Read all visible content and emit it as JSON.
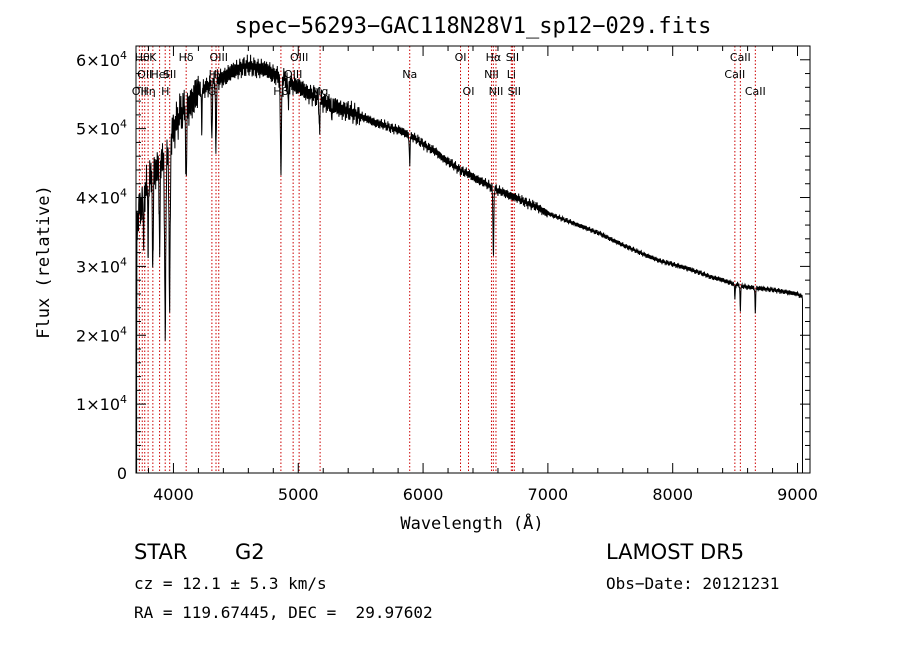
{
  "chart_data": {
    "type": "line",
    "title": "spec−56293−GAC118N28V1_sp12−029.fits",
    "xlabel": "Wavelength (Å)",
    "ylabel": "Flux (relative)",
    "xlim": [
      3700,
      9100
    ],
    "ylim": [
      0,
      62000
    ],
    "x_ticks": [
      {
        "value": 4000,
        "label": "4000"
      },
      {
        "value": 5000,
        "label": "5000"
      },
      {
        "value": 6000,
        "label": "6000"
      },
      {
        "value": 7000,
        "label": "7000"
      },
      {
        "value": 8000,
        "label": "8000"
      },
      {
        "value": 9000,
        "label": "9000"
      }
    ],
    "y_ticks": [
      {
        "value": 0,
        "label": "0"
      },
      {
        "value": 10000,
        "label": "1×10",
        "exp": "4"
      },
      {
        "value": 20000,
        "label": "2×10",
        "exp": "4"
      },
      {
        "value": 30000,
        "label": "3×10",
        "exp": "4"
      },
      {
        "value": 40000,
        "label": "4×10",
        "exp": "4"
      },
      {
        "value": 50000,
        "label": "5×10",
        "exp": "4"
      },
      {
        "value": 60000,
        "label": "6×10",
        "exp": "4"
      }
    ],
    "continuum": [
      [
        3700,
        36000
      ],
      [
        3750,
        40000
      ],
      [
        3800,
        42000
      ],
      [
        3850,
        44000
      ],
      [
        3900,
        45000
      ],
      [
        3950,
        47000
      ],
      [
        4000,
        50000
      ],
      [
        4050,
        52000
      ],
      [
        4100,
        53000
      ],
      [
        4150,
        54000
      ],
      [
        4200,
        55500
      ],
      [
        4250,
        56000
      ],
      [
        4300,
        56500
      ],
      [
        4350,
        57000
      ],
      [
        4400,
        57500
      ],
      [
        4450,
        58000
      ],
      [
        4500,
        58500
      ],
      [
        4550,
        59000
      ],
      [
        4600,
        59000
      ],
      [
        4700,
        58800
      ],
      [
        4800,
        58000
      ],
      [
        4900,
        57000
      ],
      [
        5000,
        56000
      ],
      [
        5100,
        55000
      ],
      [
        5200,
        54000
      ],
      [
        5300,
        53200
      ],
      [
        5400,
        52500
      ],
      [
        5500,
        51800
      ],
      [
        5600,
        51000
      ],
      [
        5700,
        50400
      ],
      [
        5800,
        49800
      ],
      [
        5900,
        49000
      ],
      [
        6000,
        47800
      ],
      [
        6100,
        46600
      ],
      [
        6200,
        45200
      ],
      [
        6300,
        44000
      ],
      [
        6400,
        43000
      ],
      [
        6500,
        42000
      ],
      [
        6600,
        41000
      ],
      [
        6700,
        40300
      ],
      [
        6800,
        39500
      ],
      [
        6900,
        38700
      ],
      [
        7000,
        37700
      ],
      [
        7100,
        37000
      ],
      [
        7200,
        36300
      ],
      [
        7300,
        35600
      ],
      [
        7400,
        34900
      ],
      [
        7500,
        34000
      ],
      [
        7600,
        33100
      ],
      [
        7700,
        32300
      ],
      [
        7800,
        31500
      ],
      [
        7900,
        30800
      ],
      [
        8000,
        30300
      ],
      [
        8100,
        29800
      ],
      [
        8200,
        29200
      ],
      [
        8300,
        28500
      ],
      [
        8400,
        28000
      ],
      [
        8500,
        27400
      ],
      [
        8600,
        27000
      ],
      [
        8700,
        26800
      ],
      [
        8800,
        26600
      ],
      [
        8900,
        26300
      ],
      [
        9000,
        26000
      ],
      [
        9040,
        25500
      ]
    ],
    "absorption_features": [
      {
        "center": 3934,
        "depth": 26000,
        "width": 7
      },
      {
        "center": 3969,
        "depth": 24000,
        "width": 7
      },
      {
        "center": 3889,
        "depth": 12000,
        "width": 5
      },
      {
        "center": 3835,
        "depth": 14000,
        "width": 5
      },
      {
        "center": 3797,
        "depth": 9000,
        "width": 4
      },
      {
        "center": 3760,
        "depth": 8000,
        "width": 4
      },
      {
        "center": 4102,
        "depth": 10000,
        "width": 6
      },
      {
        "center": 4227,
        "depth": 6000,
        "width": 4
      },
      {
        "center": 4308,
        "depth": 8000,
        "width": 5
      },
      {
        "center": 4341,
        "depth": 10000,
        "width": 5
      },
      {
        "center": 4861,
        "depth": 14000,
        "width": 6
      },
      {
        "center": 4920,
        "depth": 4000,
        "width": 4
      },
      {
        "center": 5170,
        "depth": 4000,
        "width": 6
      },
      {
        "center": 5270,
        "depth": 2500,
        "width": 4
      },
      {
        "center": 5893,
        "depth": 4000,
        "width": 5
      },
      {
        "center": 6563,
        "depth": 9500,
        "width": 5
      },
      {
        "center": 8498,
        "depth": 2000,
        "width": 4
      },
      {
        "center": 8542,
        "depth": 3500,
        "width": 4
      },
      {
        "center": 8662,
        "depth": 3500,
        "width": 4
      }
    ],
    "line_markers": [
      {
        "wavelength": 3727,
        "label": "OII",
        "row": 3
      },
      {
        "wavelength": 3750,
        "label": "Hθ",
        "row": 1
      },
      {
        "wavelength": 3770,
        "label": "OII",
        "row": 2
      },
      {
        "wavelength": 3797,
        "label": "Hη",
        "row": 3
      },
      {
        "wavelength": 3835,
        "label": "K",
        "row": 1
      },
      {
        "wavelength": 3889,
        "label": "HeI",
        "row": 2
      },
      {
        "wavelength": 3934,
        "label": "H",
        "row": 3
      },
      {
        "wavelength": 3970,
        "label": "SII",
        "row": 2
      },
      {
        "wavelength": 4102,
        "label": "Hδ",
        "row": 1
      },
      {
        "wavelength": 4308,
        "label": "G",
        "row": 3
      },
      {
        "wavelength": 4341,
        "label": "Hγ",
        "row": 2
      },
      {
        "wavelength": 4363,
        "label": "OIII",
        "row": 1
      },
      {
        "wavelength": 4861,
        "label": "Hβ",
        "row": 3
      },
      {
        "wavelength": 4959,
        "label": "OIII",
        "row": 2
      },
      {
        "wavelength": 5007,
        "label": "OIII",
        "row": 1
      },
      {
        "wavelength": 5175,
        "label": "Mg",
        "row": 3
      },
      {
        "wavelength": 5893,
        "label": "Na",
        "row": 2
      },
      {
        "wavelength": 6300,
        "label": "OI",
        "row": 1
      },
      {
        "wavelength": 6364,
        "label": "OI",
        "row": 3
      },
      {
        "wavelength": 6548,
        "label": "NII",
        "row": 2
      },
      {
        "wavelength": 6563,
        "label": "Hα",
        "row": 1
      },
      {
        "wavelength": 6584,
        "label": "NII",
        "row": 3
      },
      {
        "wavelength": 6707,
        "label": "Li",
        "row": 2
      },
      {
        "wavelength": 6716,
        "label": "SII",
        "row": 1
      },
      {
        "wavelength": 6731,
        "label": "SII",
        "row": 3
      },
      {
        "wavelength": 8498,
        "label": "CaII",
        "row": 2
      },
      {
        "wavelength": 8542,
        "label": "CaII",
        "row": 1
      },
      {
        "wavelength": 8662,
        "label": "CaII",
        "row": 3
      }
    ]
  },
  "info": {
    "class_label": "STAR",
    "subclass": "G2",
    "survey": "LAMOST DR5",
    "cz": "cz = 12.1 ± 5.3 km/s",
    "obs_date": "Obs−Date: 20121231",
    "coords": "RA = 119.67445, DEC =  29.97602"
  },
  "colors": {
    "spectrum": "#000000",
    "marker": "#cc0000",
    "axis": "#000000"
  }
}
